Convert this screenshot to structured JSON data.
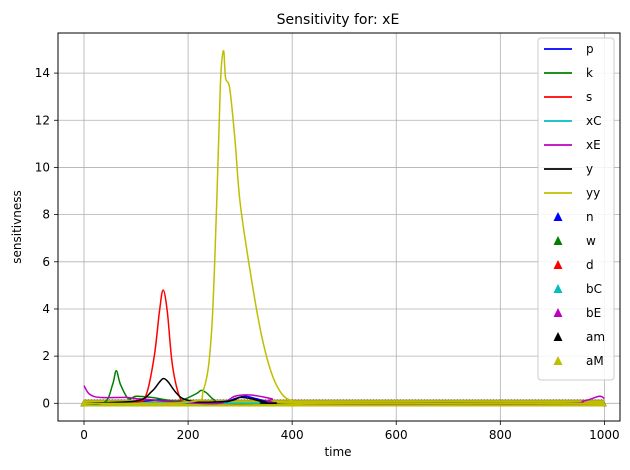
{
  "chart_data": {
    "type": "line",
    "title": "Sensitivity for: xE",
    "xlabel": "time",
    "ylabel": "sensitivness",
    "xlim": [
      -50,
      1030
    ],
    "ylim": [
      -0.75,
      15.7
    ],
    "xticks": [
      0,
      200,
      400,
      600,
      800,
      1000
    ],
    "yticks": [
      0,
      2,
      4,
      6,
      8,
      10,
      12,
      14
    ],
    "grid": true,
    "legend_position": "top-right",
    "series": [
      {
        "name": "p",
        "color": "#0000ff",
        "x": [
          0,
          80,
          120,
          150,
          180,
          260,
          290,
          310,
          330,
          360,
          400,
          1000
        ],
        "y": [
          0,
          0.05,
          0.1,
          0.15,
          0.05,
          0,
          0.2,
          0.3,
          0.2,
          0.05,
          0,
          0
        ]
      },
      {
        "name": "k",
        "color": "#008000",
        "x": [
          0,
          40,
          55,
          62,
          70,
          85,
          100,
          130,
          180,
          215,
          225,
          235,
          250,
          270,
          400,
          1000
        ],
        "y": [
          0,
          0.05,
          0.8,
          1.38,
          0.8,
          0.2,
          0.3,
          0.25,
          0.1,
          0.4,
          0.55,
          0.45,
          0.15,
          0,
          0,
          0
        ]
      },
      {
        "name": "s",
        "color": "#ff0000",
        "x": [
          0,
          100,
          120,
          135,
          145,
          152,
          160,
          170,
          185,
          200,
          400,
          1000
        ],
        "y": [
          0,
          0.05,
          0.4,
          2.0,
          3.9,
          4.8,
          3.9,
          1.6,
          0.2,
          0.02,
          0,
          0
        ]
      },
      {
        "name": "xC",
        "color": "#00bfbf",
        "x": [
          0,
          100,
          150,
          200,
          300,
          1000
        ],
        "y": [
          0,
          0,
          0.05,
          0,
          0,
          0
        ]
      },
      {
        "name": "xE",
        "color": "#bf00bf",
        "x": [
          0,
          10,
          30,
          80,
          100,
          130,
          150,
          180,
          260,
          290,
          320,
          360,
          400,
          900,
          960,
          990,
          1000
        ],
        "y": [
          0.75,
          0.4,
          0.25,
          0.25,
          0.2,
          0.15,
          0.1,
          0.05,
          0,
          0.3,
          0.35,
          0.2,
          0,
          0,
          0.1,
          0.3,
          0.2
        ]
      },
      {
        "name": "y",
        "color": "#000000",
        "x": [
          0,
          100,
          130,
          145,
          153,
          162,
          175,
          190,
          220,
          280,
          300,
          320,
          350,
          400,
          1000
        ],
        "y": [
          0,
          0.1,
          0.5,
          0.9,
          1.05,
          0.9,
          0.5,
          0.2,
          0.05,
          0.1,
          0.25,
          0.2,
          0.05,
          0,
          0
        ]
      },
      {
        "name": "yy",
        "color": "#bfbf00",
        "x": [
          0,
          200,
          230,
          245,
          255,
          262,
          268,
          272,
          280,
          290,
          300,
          320,
          340,
          360,
          380,
          400,
          420,
          1000
        ],
        "y": [
          0,
          0.05,
          0.6,
          3.0,
          8.5,
          13.5,
          14.95,
          13.8,
          13.35,
          11.2,
          8.5,
          5.5,
          3.0,
          1.3,
          0.4,
          0.1,
          0,
          0
        ]
      }
    ],
    "scatter_series": [
      {
        "name": "n",
        "color": "#0000ff",
        "marker": "^",
        "x_range": [
          0,
          1000
        ],
        "y": 0
      },
      {
        "name": "w",
        "color": "#008000",
        "marker": "^",
        "x_range": [
          0,
          1000
        ],
        "y": 0
      },
      {
        "name": "d",
        "color": "#ff0000",
        "marker": "^",
        "x_range": [
          0,
          1000
        ],
        "y": 0
      },
      {
        "name": "bC",
        "color": "#00bfbf",
        "marker": "^",
        "x_range": [
          0,
          1000
        ],
        "y": 0
      },
      {
        "name": "bE",
        "color": "#bf00bf",
        "marker": "^",
        "x_range": [
          0,
          1000
        ],
        "y": 0
      },
      {
        "name": "am",
        "color": "#000000",
        "marker": "^",
        "x_range": [
          0,
          1000
        ],
        "y": 0
      },
      {
        "name": "aM",
        "color": "#bfbf00",
        "marker": "^",
        "x_range": [
          0,
          1000
        ],
        "y": 0
      }
    ]
  }
}
